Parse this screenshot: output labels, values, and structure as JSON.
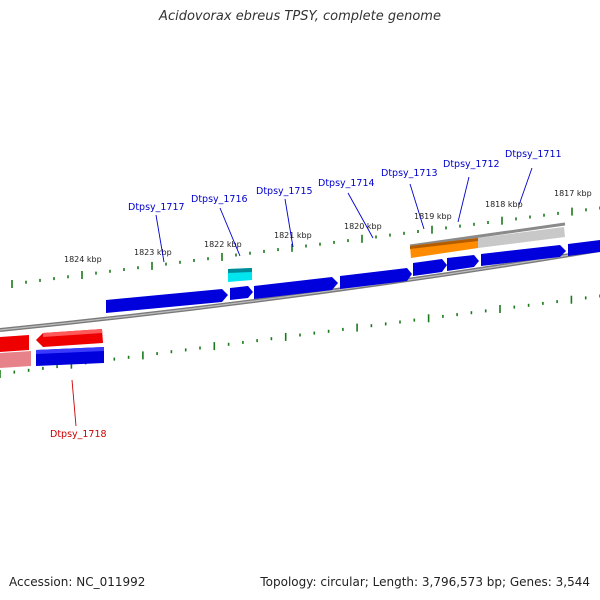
{
  "title": "Acidovorax ebreus TPSY, complete genome",
  "footer": {
    "accession": "Accession: NC_011992",
    "stats": "Topology: circular; Length: 3,796,573 bp; Genes: 3,544"
  },
  "scale_labels": [
    "1817 kbp",
    "1818 kbp",
    "1819 kbp",
    "1820 kbp",
    "1821 kbp",
    "1822 kbp",
    "1823 kbp",
    "1824 kbp"
  ],
  "gene_labels": [
    {
      "name": "Dtpsy_1711",
      "color": "#0000cc"
    },
    {
      "name": "Dtpsy_1712",
      "color": "#0000cc"
    },
    {
      "name": "Dtpsy_1713",
      "color": "#0000cc"
    },
    {
      "name": "Dtpsy_1714",
      "color": "#0000cc"
    },
    {
      "name": "Dtpsy_1715",
      "color": "#0000cc"
    },
    {
      "name": "Dtpsy_1716",
      "color": "#0000cc"
    },
    {
      "name": "Dtpsy_1717",
      "color": "#0000cc"
    },
    {
      "name": "Dtpsy_1718",
      "color": "#cc0000"
    }
  ],
  "colors": {
    "forward_gene": "#0000dd",
    "reverse_gene": "#ee0000",
    "highlight_cyan": "#00e5ee",
    "highlight_orange": "#ff8c00",
    "backbone": "#888888",
    "ticks": "#1a7a1a"
  }
}
